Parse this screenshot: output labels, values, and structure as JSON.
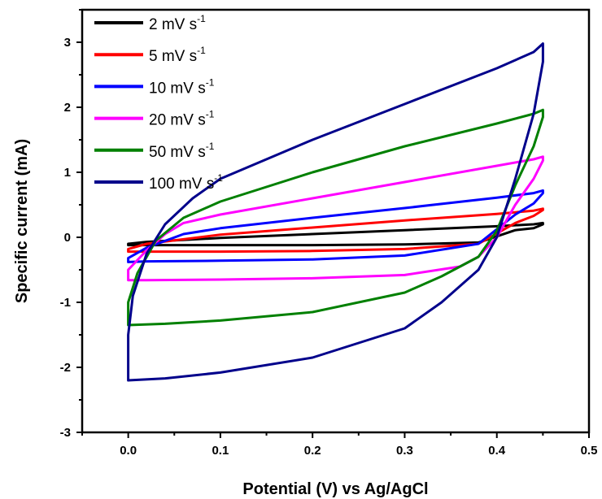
{
  "chart_data": {
    "type": "line",
    "xlabel": "Potential (V) vs Ag/AgCl",
    "ylabel": "Specific current (mA)",
    "xlim": [
      -0.05,
      0.5
    ],
    "ylim": [
      -3,
      3.5
    ],
    "xticks": [
      0.0,
      0.1,
      0.2,
      0.3,
      0.4,
      0.5
    ],
    "xtick_labels": [
      "0.0",
      "0.1",
      "0.2",
      "0.3",
      "0.4",
      "0.5"
    ],
    "yticks": [
      -3,
      -2,
      -1,
      0,
      1,
      2,
      3
    ],
    "ytick_labels": [
      "-3",
      "-2",
      "-1",
      "0",
      "1",
      "2",
      "3"
    ],
    "legend_position": "top-left",
    "grid": false,
    "series": [
      {
        "name": "2 mV s-1",
        "label_main": "2 mV s",
        "label_sup": "-1",
        "color": "#000000",
        "x": [
          0.0,
          0.0,
          0.02,
          0.1,
          0.2,
          0.3,
          0.4,
          0.44,
          0.45,
          0.45,
          0.44,
          0.42,
          0.38,
          0.3,
          0.2,
          0.1,
          0.02,
          0.0
        ],
        "y": [
          -0.12,
          -0.1,
          -0.07,
          -0.01,
          0.05,
          0.11,
          0.17,
          0.2,
          0.22,
          0.2,
          0.14,
          0.11,
          -0.08,
          -0.11,
          -0.12,
          -0.12,
          -0.12,
          -0.12
        ]
      },
      {
        "name": "5 mV s-1",
        "label_main": "5 mV s",
        "label_sup": "-1",
        "color": "#ff0000",
        "x": [
          0.0,
          0.0,
          0.02,
          0.1,
          0.2,
          0.3,
          0.4,
          0.44,
          0.45,
          0.45,
          0.44,
          0.42,
          0.38,
          0.3,
          0.2,
          0.1,
          0.02,
          0.0
        ],
        "y": [
          -0.22,
          -0.18,
          -0.1,
          0.04,
          0.15,
          0.26,
          0.36,
          0.41,
          0.44,
          0.42,
          0.33,
          0.22,
          -0.1,
          -0.18,
          -0.21,
          -0.22,
          -0.22,
          -0.22
        ]
      },
      {
        "name": "10 mV s-1",
        "label_main": "10 mV s",
        "label_sup": "-1",
        "color": "#0000ff",
        "x": [
          0.0,
          0.0,
          0.02,
          0.06,
          0.1,
          0.2,
          0.3,
          0.4,
          0.44,
          0.45,
          0.45,
          0.44,
          0.42,
          0.38,
          0.3,
          0.2,
          0.1,
          0.02,
          0.0
        ],
        "y": [
          -0.38,
          -0.32,
          -0.16,
          0.05,
          0.14,
          0.3,
          0.45,
          0.61,
          0.68,
          0.72,
          0.68,
          0.52,
          0.35,
          -0.1,
          -0.28,
          -0.34,
          -0.36,
          -0.37,
          -0.38
        ]
      },
      {
        "name": "20 mV s-1",
        "label_main": "20 mV s",
        "label_sup": "-1",
        "color": "#ff00ff",
        "x": [
          0.0,
          0.0,
          0.02,
          0.04,
          0.06,
          0.1,
          0.2,
          0.3,
          0.4,
          0.44,
          0.45,
          0.45,
          0.44,
          0.42,
          0.4,
          0.38,
          0.36,
          0.3,
          0.2,
          0.1,
          0.02,
          0.0
        ],
        "y": [
          -0.66,
          -0.5,
          -0.2,
          0.05,
          0.22,
          0.35,
          0.6,
          0.85,
          1.1,
          1.2,
          1.24,
          1.18,
          0.9,
          0.5,
          0.0,
          -0.3,
          -0.45,
          -0.58,
          -0.63,
          -0.65,
          -0.66,
          -0.66
        ]
      },
      {
        "name": "50 mV s-1",
        "label_main": "50 mV s",
        "label_sup": "-1",
        "color": "#008000",
        "x": [
          0.0,
          0.0,
          0.01,
          0.03,
          0.06,
          0.1,
          0.2,
          0.3,
          0.4,
          0.44,
          0.45,
          0.45,
          0.44,
          0.42,
          0.4,
          0.38,
          0.34,
          0.3,
          0.2,
          0.1,
          0.04,
          0.0
        ],
        "y": [
          -1.35,
          -1.0,
          -0.55,
          -0.05,
          0.3,
          0.55,
          1.0,
          1.4,
          1.75,
          1.9,
          1.96,
          1.85,
          1.4,
          0.8,
          0.1,
          -0.3,
          -0.6,
          -0.85,
          -1.15,
          -1.28,
          -1.33,
          -1.35
        ]
      },
      {
        "name": "100 mV s-1",
        "label_main": "100 mV s",
        "label_sup": "-1",
        "color": "#00008b",
        "x": [
          0.0,
          0.0,
          0.005,
          0.02,
          0.04,
          0.07,
          0.1,
          0.2,
          0.3,
          0.4,
          0.44,
          0.45,
          0.45,
          0.44,
          0.42,
          0.4,
          0.38,
          0.34,
          0.3,
          0.2,
          0.1,
          0.04,
          0.0
        ],
        "y": [
          -2.2,
          -1.5,
          -0.9,
          -0.25,
          0.2,
          0.6,
          0.9,
          1.5,
          2.05,
          2.6,
          2.85,
          2.98,
          2.7,
          1.9,
          0.9,
          0.0,
          -0.5,
          -1.0,
          -1.4,
          -1.85,
          -2.08,
          -2.17,
          -2.2
        ]
      }
    ]
  }
}
